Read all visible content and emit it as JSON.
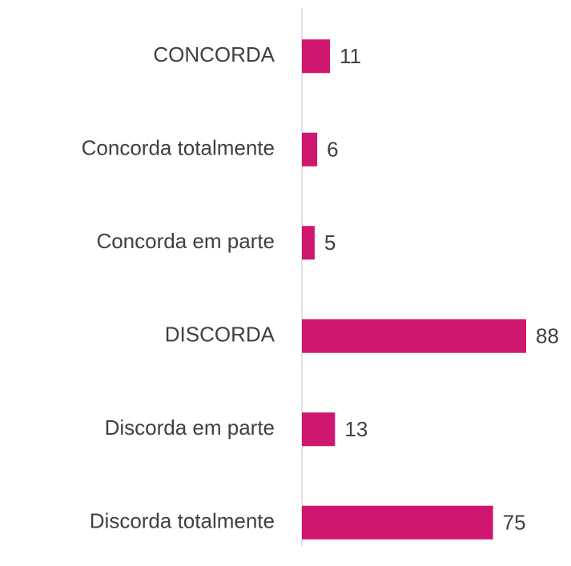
{
  "chart_data": {
    "type": "bar",
    "orientation": "horizontal",
    "categories": [
      "CONCORDA",
      "Concorda totalmente",
      "Concorda em parte",
      "DISCORDA",
      "Discorda em parte",
      "Discorda totalmente"
    ],
    "values": [
      11,
      6,
      5,
      88,
      13,
      75
    ],
    "color": "#cf1770"
  }
}
